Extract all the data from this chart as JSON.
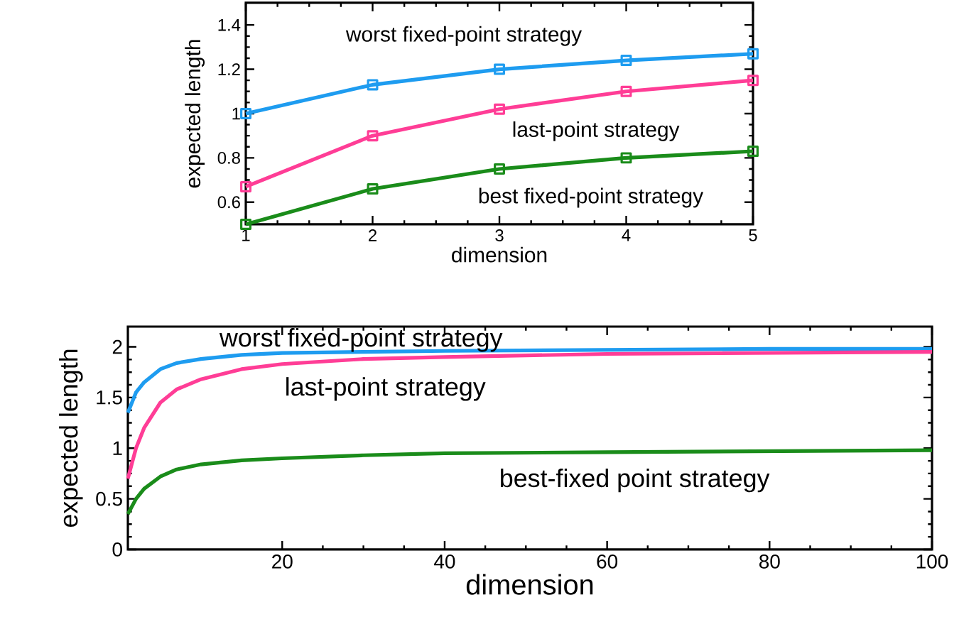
{
  "chart_data": [
    {
      "type": "line",
      "xlabel": "dimension",
      "ylabel": "expected length",
      "x": [
        1,
        2,
        3,
        4,
        5
      ],
      "xlim": [
        1,
        5
      ],
      "ylim": [
        0.5,
        1.5
      ],
      "xticks": [
        1,
        2,
        3,
        4,
        5
      ],
      "yticks": [
        0.6,
        0.8,
        1,
        1.2,
        1.4
      ],
      "marker": "square",
      "grid": false,
      "series": [
        {
          "name": "worst fixed-point strategy",
          "color": "#1e9cf0",
          "values": [
            1.0,
            1.13,
            1.2,
            1.24,
            1.27
          ]
        },
        {
          "name": "last-point strategy",
          "color": "#ff3d96",
          "values": [
            0.67,
            0.9,
            1.02,
            1.1,
            1.15
          ]
        },
        {
          "name": "best fixed-point strategy",
          "color": "#1a8c1a",
          "values": [
            0.5,
            0.66,
            0.75,
            0.8,
            0.83
          ]
        }
      ]
    },
    {
      "type": "line",
      "xlabel": "dimension",
      "ylabel": "expected length",
      "xlim": [
        1,
        100
      ],
      "ylim": [
        0,
        2.2
      ],
      "xticks": [
        20,
        40,
        60,
        80,
        100
      ],
      "yticks": [
        0,
        0.5,
        1,
        1.5,
        2
      ],
      "marker": "none",
      "grid": false,
      "series": [
        {
          "name": "worst fixed-point strategy",
          "color": "#1e9cf0",
          "x": [
            1,
            2,
            3,
            5,
            7,
            10,
            15,
            20,
            30,
            40,
            60,
            80,
            100
          ],
          "values": [
            1.35,
            1.55,
            1.65,
            1.78,
            1.84,
            1.88,
            1.92,
            1.94,
            1.95,
            1.96,
            1.97,
            1.98,
            1.98
          ]
        },
        {
          "name": "last-point strategy",
          "color": "#ff3d96",
          "x": [
            1,
            2,
            3,
            5,
            7,
            10,
            15,
            20,
            30,
            40,
            60,
            80,
            100
          ],
          "values": [
            0.7,
            1.0,
            1.2,
            1.45,
            1.58,
            1.68,
            1.78,
            1.83,
            1.88,
            1.9,
            1.93,
            1.94,
            1.95
          ]
        },
        {
          "name": "best-fixed point strategy",
          "color": "#1a8c1a",
          "x": [
            1,
            2,
            3,
            5,
            7,
            10,
            15,
            20,
            30,
            40,
            60,
            80,
            100
          ],
          "values": [
            0.35,
            0.5,
            0.6,
            0.72,
            0.79,
            0.84,
            0.88,
            0.9,
            0.93,
            0.95,
            0.96,
            0.97,
            0.98
          ]
        }
      ]
    }
  ]
}
